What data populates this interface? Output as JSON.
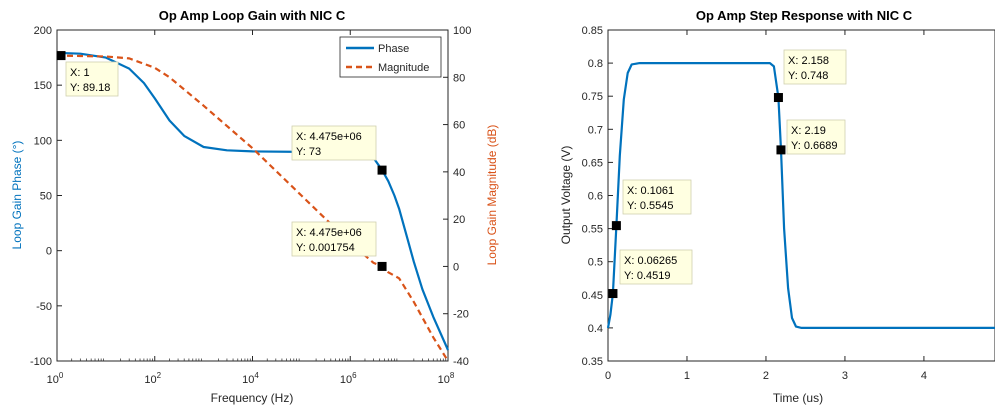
{
  "chart_data": [
    {
      "type": "line",
      "title": "Op Amp Loop Gain with NIC C",
      "xlabel": "Frequency (Hz)",
      "xscale": "log",
      "xlim": [
        1,
        100000000
      ],
      "xticks": [
        {
          "value": 1,
          "mantissa": "10",
          "exp": "0"
        },
        {
          "value": 100,
          "mantissa": "10",
          "exp": "2"
        },
        {
          "value": 10000,
          "mantissa": "10",
          "exp": "4"
        },
        {
          "value": 1000000,
          "mantissa": "10",
          "exp": "6"
        },
        {
          "value": 100000000,
          "mantissa": "10",
          "exp": "8"
        }
      ],
      "ylabel_left": "Loop Gain Phase (°)",
      "ylim_left": [
        -100,
        200
      ],
      "yticks_left": [
        -100,
        -50,
        0,
        50,
        100,
        150,
        200
      ],
      "ylabel_right": "Loop Gain Magnitude (dB)",
      "ylim_right": [
        -40,
        100
      ],
      "yticks_right": [
        -40,
        -20,
        0,
        20,
        40,
        60,
        80,
        100
      ],
      "legend": {
        "placement": "top-right"
      },
      "left_axis_color": "#0072BD",
      "right_axis_color": "#D95319",
      "series": [
        {
          "name": "Phase",
          "axis": "left",
          "color": "#0072BD",
          "style": "solid",
          "x": [
            1,
            3,
            10,
            30,
            60,
            100,
            200,
            400,
            1000,
            3000,
            10000,
            100000,
            1000000,
            2000000,
            3000000,
            4475000,
            6000000,
            8000000,
            10000000,
            15000000,
            20000000,
            30000000,
            50000000,
            100000000
          ],
          "y": [
            179.3,
            178.5,
            175,
            165,
            152,
            138,
            118,
            104,
            94,
            91,
            90,
            89.5,
            88.5,
            87,
            84,
            73,
            63,
            50,
            38,
            10,
            -10,
            -35,
            -60,
            -90
          ]
        },
        {
          "name": "Magnitude",
          "axis": "right",
          "color": "#D95319",
          "style": "dashed",
          "x": [
            1,
            3,
            10,
            30,
            100,
            200,
            300,
            1000,
            10000,
            100000,
            1000000,
            3000000,
            4475000,
            6000000,
            10000000,
            20000000,
            50000000,
            100000000
          ],
          "y": [
            89.18,
            89,
            88.8,
            88,
            84,
            80,
            77,
            68,
            50,
            30,
            10,
            1.5,
            0.001754,
            -2.5,
            -5,
            -15,
            -30,
            -40
          ]
        }
      ],
      "datatips": [
        {
          "series": "Phase",
          "x": 1,
          "y": 89.18,
          "axis": "right",
          "x_label": "X: 1",
          "y_label": "Y: 89.18"
        },
        {
          "series": "Phase",
          "x": 4475000,
          "y": 73,
          "axis": "left",
          "x_label": "X: 4.475e+06",
          "y_label": "Y: 73"
        },
        {
          "series": "Magnitude",
          "x": 4475000,
          "y": 0.001754,
          "axis": "right",
          "x_label": "X: 4.475e+06",
          "y_label": "Y: 0.001754"
        }
      ]
    },
    {
      "type": "line",
      "title": "Op Amp Step Response with NIC C",
      "xlabel": "Time (us)",
      "ylabel": "Output Voltage (V)",
      "xlim": [
        0,
        4.9
      ],
      "xticks": [
        0,
        1,
        2,
        3,
        4
      ],
      "ylim": [
        0.35,
        0.85
      ],
      "yticks": [
        0.35,
        0.4,
        0.45,
        0.5,
        0.55,
        0.6,
        0.65,
        0.7,
        0.75,
        0.8,
        0.85
      ],
      "series": [
        {
          "color": "#0072BD",
          "x": [
            0,
            0.03,
            0.06265,
            0.1061,
            0.15,
            0.2,
            0.25,
            0.3,
            0.4,
            1.0,
            2.05,
            2.1,
            2.158,
            2.19,
            2.23,
            2.28,
            2.33,
            2.38,
            2.45,
            3.0,
            4.9
          ],
          "y": [
            0.4,
            0.42,
            0.4519,
            0.5545,
            0.66,
            0.745,
            0.785,
            0.798,
            0.8,
            0.8,
            0.8,
            0.795,
            0.748,
            0.6689,
            0.55,
            0.46,
            0.415,
            0.402,
            0.4,
            0.4,
            0.4
          ]
        }
      ],
      "datatips": [
        {
          "x": 2.158,
          "y": 0.748,
          "x_label": "X: 2.158",
          "y_label": "Y: 0.748"
        },
        {
          "x": 2.19,
          "y": 0.6689,
          "x_label": "X: 2.19",
          "y_label": "Y: 0.6689"
        },
        {
          "x": 0.1061,
          "y": 0.5545,
          "x_label": "X: 0.1061",
          "y_label": "Y: 0.5545"
        },
        {
          "x": 0.06265,
          "y": 0.4519,
          "x_label": "X: 0.06265",
          "y_label": "Y: 0.4519"
        }
      ]
    }
  ]
}
